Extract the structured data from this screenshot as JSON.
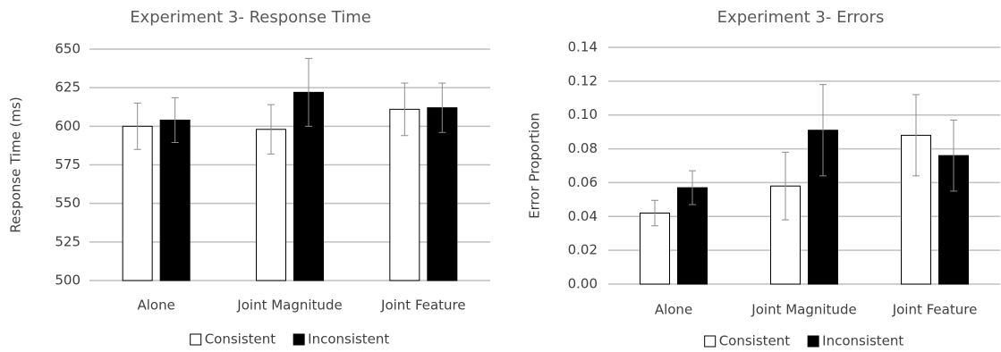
{
  "chart_data": [
    {
      "type": "bar",
      "title": "Experiment 3- Response Time",
      "y_label": "Response Time (ms)",
      "categories": [
        "Alone",
        "Joint Magnitude",
        "Joint Feature"
      ],
      "series": [
        {
          "name": "Consistent",
          "color": "#ffffff",
          "values": [
            600,
            598,
            611
          ],
          "errors": [
            15,
            16,
            17
          ]
        },
        {
          "name": "Inconsistent",
          "color": "#000000",
          "values": [
            604,
            622,
            612
          ],
          "errors": [
            14.5,
            22,
            16
          ]
        }
      ],
      "ylim": [
        500,
        650
      ],
      "yticks": [
        500,
        525,
        550,
        575,
        600,
        625,
        650
      ],
      "grid": true,
      "legend": "bottom"
    },
    {
      "type": "bar",
      "title": "Experiment 3- Errors",
      "y_label": "Error Proportion",
      "categories": [
        "Alone",
        "Joint Magnitude",
        "Joint Feature"
      ],
      "series": [
        {
          "name": "Consistent",
          "color": "#ffffff",
          "values": [
            0.042,
            0.058,
            0.088
          ],
          "errors": [
            0.0075,
            0.02,
            0.024
          ]
        },
        {
          "name": "Inconsistent",
          "color": "#000000",
          "values": [
            0.057,
            0.091,
            0.076
          ],
          "errors": [
            0.01,
            0.027,
            0.021
          ]
        }
      ],
      "ylim": [
        0,
        0.14
      ],
      "yticks": [
        {
          "value": 0,
          "label": "0.00"
        },
        {
          "value": 0.02,
          "label": "0.02"
        },
        {
          "value": 0.04,
          "label": "0.04"
        },
        {
          "value": 0.06,
          "label": "0.06"
        },
        {
          "value": 0.08,
          "label": "0.08"
        },
        {
          "value": 0.1,
          "label": "0.10"
        },
        {
          "value": 0.12,
          "label": "0.12"
        },
        {
          "value": 0.14,
          "label": "0.14"
        }
      ],
      "grid": true,
      "legend": "bottom"
    }
  ]
}
